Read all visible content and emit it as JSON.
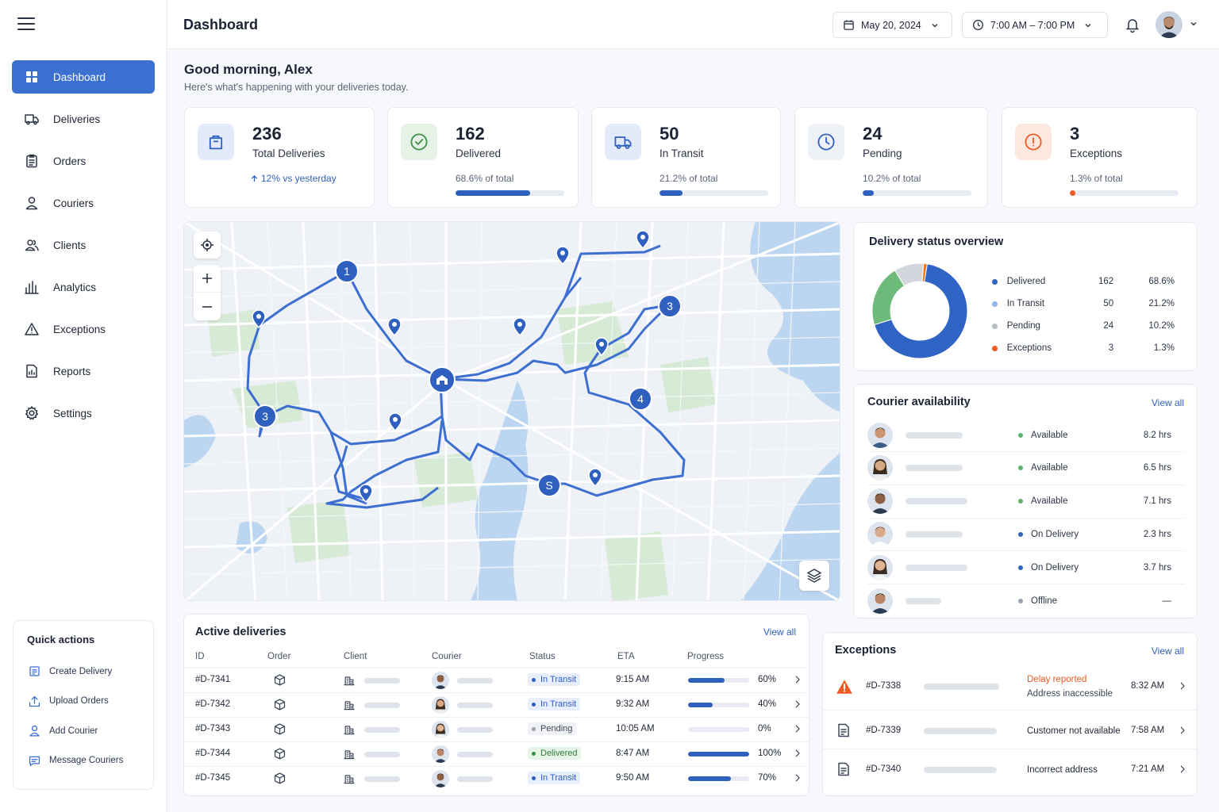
{
  "page": {
    "title": "Dashboard"
  },
  "header": {
    "date": "May 20, 2024",
    "time_range": "7:00 AM – 7:00 PM"
  },
  "sidebar": {
    "items": [
      {
        "label": "Dashboard",
        "icon": "grid-icon",
        "active": true
      },
      {
        "label": "Deliveries",
        "icon": "truck-icon"
      },
      {
        "label": "Orders",
        "icon": "clipboard-icon"
      },
      {
        "label": "Couriers",
        "icon": "user-icon"
      },
      {
        "label": "Clients",
        "icon": "users-icon"
      },
      {
        "label": "Analytics",
        "icon": "bar-chart-icon"
      },
      {
        "label": "Exceptions",
        "icon": "warning-icon"
      },
      {
        "label": "Reports",
        "icon": "report-icon"
      },
      {
        "label": "Settings",
        "icon": "gear-icon"
      }
    ]
  },
  "quick_actions": {
    "title": "Quick actions",
    "items": [
      {
        "label": "Create Delivery",
        "icon": "create-icon"
      },
      {
        "label": "Upload Orders",
        "icon": "upload-icon"
      },
      {
        "label": "Add Courier",
        "icon": "add-user-icon"
      },
      {
        "label": "Message Couriers",
        "icon": "message-icon"
      }
    ]
  },
  "greeting": {
    "title": "Good morning, Alex",
    "subtitle": "Here's what's happening with your deliveries today."
  },
  "stats": [
    {
      "value": "236",
      "label": "Total Deliveries",
      "sub": "12% vs yesterday",
      "icon": "package-icon"
    },
    {
      "value": "162",
      "label": "Delivered",
      "sub": "68.6% of total",
      "progress": 0.686,
      "color": "#2f5fbf",
      "icon": "check-circle-icon"
    },
    {
      "value": "50",
      "label": "In Transit",
      "sub": "21.2% of total",
      "progress": 0.212,
      "color": "#2f5fbf",
      "icon": "truck-icon"
    },
    {
      "value": "24",
      "label": "Pending",
      "sub": "10.2% of total",
      "progress": 0.102,
      "color": "#2f5fbf",
      "icon": "clock-icon"
    },
    {
      "value": "3",
      "label": "Exceptions",
      "sub": "1.3% of total",
      "progress": 0.013,
      "color": "#f05a22",
      "icon": "alert-icon"
    }
  ],
  "map": {
    "stops": [
      "1",
      "3",
      "3",
      "4",
      "S"
    ]
  },
  "status_overview": {
    "title": "Delivery status overview",
    "rows": [
      {
        "label": "Delivered",
        "count": "162",
        "pct": "68.6%",
        "value": 162,
        "color": "#2f64c4"
      },
      {
        "label": "In Transit",
        "count": "50",
        "pct": "21.2%",
        "value": 50,
        "color": "#6dba7a"
      },
      {
        "label": "Pending",
        "count": "24",
        "pct": "10.2%",
        "value": 24,
        "color": "#d3d6dd"
      },
      {
        "label": "Exceptions",
        "count": "3",
        "pct": "1.3%",
        "value": 3,
        "color": "#f07a22"
      }
    ],
    "legend_colors": [
      "#2f64c4",
      "#8fb4ea",
      "#b8bcc6",
      "#f05a22"
    ]
  },
  "couriers": {
    "title": "Courier availability",
    "view_all": "View all",
    "rows": [
      {
        "status": "Available",
        "hours": "8.2 hrs",
        "dot": "#5cb36b"
      },
      {
        "status": "Available",
        "hours": "6.5 hrs",
        "dot": "#5cb36b"
      },
      {
        "status": "Available",
        "hours": "7.1 hrs",
        "dot": "#5cb36b"
      },
      {
        "status": "On Delivery",
        "hours": "2.3 hrs",
        "dot": "#2f64c4"
      },
      {
        "status": "On Delivery",
        "hours": "3.7 hrs",
        "dot": "#2f64c4"
      },
      {
        "status": "Offline",
        "hours": "—",
        "dot": "#9aa1ad"
      }
    ]
  },
  "active_deliveries": {
    "title": "Active deliveries",
    "view_all": "View all",
    "columns": [
      "ID",
      "Order",
      "Client",
      "Courier",
      "Status",
      "ETA",
      "Progress"
    ],
    "rows": [
      {
        "id": "#D-7341",
        "status": "In Transit",
        "eta": "9:15 AM",
        "progress": "60%",
        "pct": 0.6
      },
      {
        "id": "#D-7342",
        "status": "In Transit",
        "eta": "9:32 AM",
        "progress": "40%",
        "pct": 0.4
      },
      {
        "id": "#D-7343",
        "status": "Pending",
        "eta": "10:05 AM",
        "progress": "0%",
        "pct": 0
      },
      {
        "id": "#D-7344",
        "status": "Delivered",
        "eta": "8:47 AM",
        "progress": "100%",
        "pct": 1.0
      },
      {
        "id": "#D-7345",
        "status": "In Transit",
        "eta": "9:50 AM",
        "progress": "70%",
        "pct": 0.7
      }
    ]
  },
  "exceptions": {
    "title": "Exceptions",
    "view_all": "View all",
    "rows": [
      {
        "id": "#D-7338",
        "reason": "Delay reported",
        "detail": "Address inaccessible",
        "time": "8:32 AM",
        "icon": "warning-triangle-icon"
      },
      {
        "id": "#D-7339",
        "reason": "Customer not available",
        "detail": "",
        "time": "7:58 AM",
        "icon": "document-icon"
      },
      {
        "id": "#D-7340",
        "reason": "Incorrect address",
        "detail": "",
        "time": "7:21 AM",
        "icon": "document-icon"
      }
    ]
  }
}
